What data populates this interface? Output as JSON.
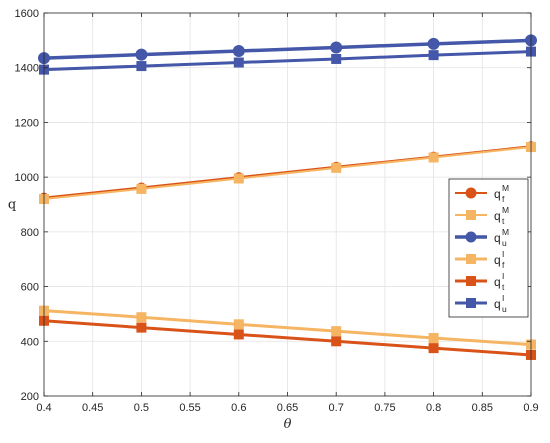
{
  "chart_data": {
    "type": "line",
    "xlabel": "θ",
    "ylabel": "q",
    "xlim": [
      0.4,
      0.9
    ],
    "ylim": [
      200,
      1600
    ],
    "grid": true,
    "legend_placement": "right",
    "x": [
      0.4,
      0.5,
      0.6,
      0.7,
      0.8,
      0.9
    ],
    "x_tick_labels": [
      "0.4",
      "0.45",
      "0.5",
      "0.55",
      "0.6",
      "0.65",
      "0.7",
      "0.75",
      "0.8",
      "0.85",
      "0.9"
    ],
    "y_tick_labels": [
      "200",
      "400",
      "600",
      "800",
      "1000",
      "1200",
      "1400",
      "1600"
    ],
    "series": [
      {
        "name": "q_f^M",
        "base": "q",
        "sup": "M",
        "sub": "f",
        "color": "#D95319",
        "marker": "circle",
        "line_width": 2,
        "values": [
          925,
          962,
          1000,
          1038,
          1075,
          1113
        ]
      },
      {
        "name": "q_t^M",
        "base": "q",
        "sup": "M",
        "sub": "t",
        "color": "#F5B562",
        "marker": "square",
        "line_width": 2,
        "values": [
          920,
          957,
          995,
          1034,
          1072,
          1110
        ]
      },
      {
        "name": "q_u^M",
        "base": "q",
        "sup": "M",
        "sub": "u",
        "color": "#4457A8",
        "marker": "circle",
        "line_width": 3.5,
        "values": [
          1435,
          1448,
          1461,
          1474,
          1487,
          1500
        ]
      },
      {
        "name": "q_f^I",
        "base": "q",
        "sup": "I",
        "sub": "f",
        "color": "#F5B562",
        "marker": "square",
        "line_width": 3,
        "values": [
          512,
          488,
          462,
          437,
          412,
          388
        ]
      },
      {
        "name": "q_t^I",
        "base": "q",
        "sup": "I",
        "sub": "t",
        "color": "#D95319",
        "marker": "square",
        "line_width": 3,
        "values": [
          475,
          450,
          425,
          400,
          375,
          350
        ]
      },
      {
        "name": "q_u^I",
        "base": "q",
        "sup": "I",
        "sub": "u",
        "color": "#4457A8",
        "marker": "square",
        "line_width": 3,
        "values": [
          1393,
          1406,
          1419,
          1432,
          1446,
          1459
        ]
      }
    ]
  }
}
